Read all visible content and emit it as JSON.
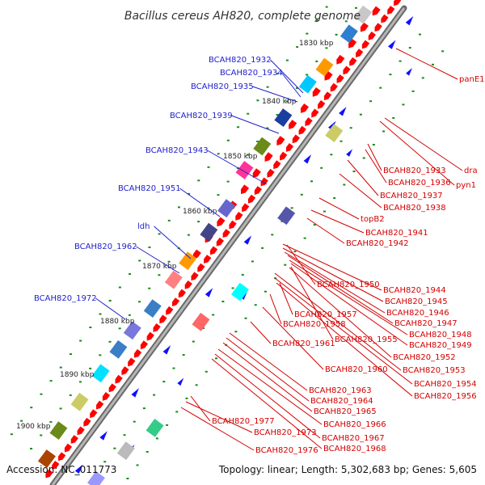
{
  "title": "Bacillus cereus AH820, complete genome",
  "footer": {
    "accession": "Accession: NC_011773",
    "topology": "Topology: linear; Length: 5,302,683 bp; Genes: 5,605"
  },
  "kbp_labels": [
    "1830 kbp",
    "1840 kbp",
    "1850 kbp",
    "1860 kbp",
    "1870 kbp",
    "1880 kbp",
    "1890 kbp",
    "1900 kbp"
  ],
  "left_genes": [
    "BCAH820_1932",
    "BCAH820_1934",
    "BCAH820_1935",
    "BCAH820_1939",
    "BCAH820_1943",
    "BCAH820_1951",
    "ldh",
    "BCAH820_1962",
    "BCAH820_1972"
  ],
  "right_genes": [
    "panE1",
    "dra",
    "BCAH820_1933",
    "pyn1",
    "BCAH820_1936",
    "BCAH820_1937",
    "BCAH820_1938",
    "topB2",
    "BCAH820_1941",
    "BCAH820_1942",
    "BCAH820_1950",
    "BCAH820_1944",
    "BCAH820_1945",
    "BCAH820_1946",
    "BCAH820_1957",
    "BCAH820_1947",
    "BCAH820_1958",
    "BCAH820_1948",
    "BCAH820_1955",
    "BCAH820_1949",
    "BCAH820_1961",
    "BCAH820_1952",
    "BCAH820_1960",
    "BCAH820_1953",
    "BCAH820_1954",
    "BCAH820_1956",
    "BCAH820_1963",
    "BCAH820_1964",
    "BCAH820_1965",
    "BCAH820_1977",
    "BCAH820_1966",
    "BCAH820_1973",
    "BCAH820_1967",
    "BCAH820_1976",
    "BCAH820_1968"
  ],
  "colors": {
    "backbone": "#8a8a8a",
    "gene_forward": "#ff0000",
    "gene_reverse": "#1010ff",
    "tick": "#1a8a1a",
    "label_left": "#1f1fcc",
    "label_right": "#d40000"
  }
}
